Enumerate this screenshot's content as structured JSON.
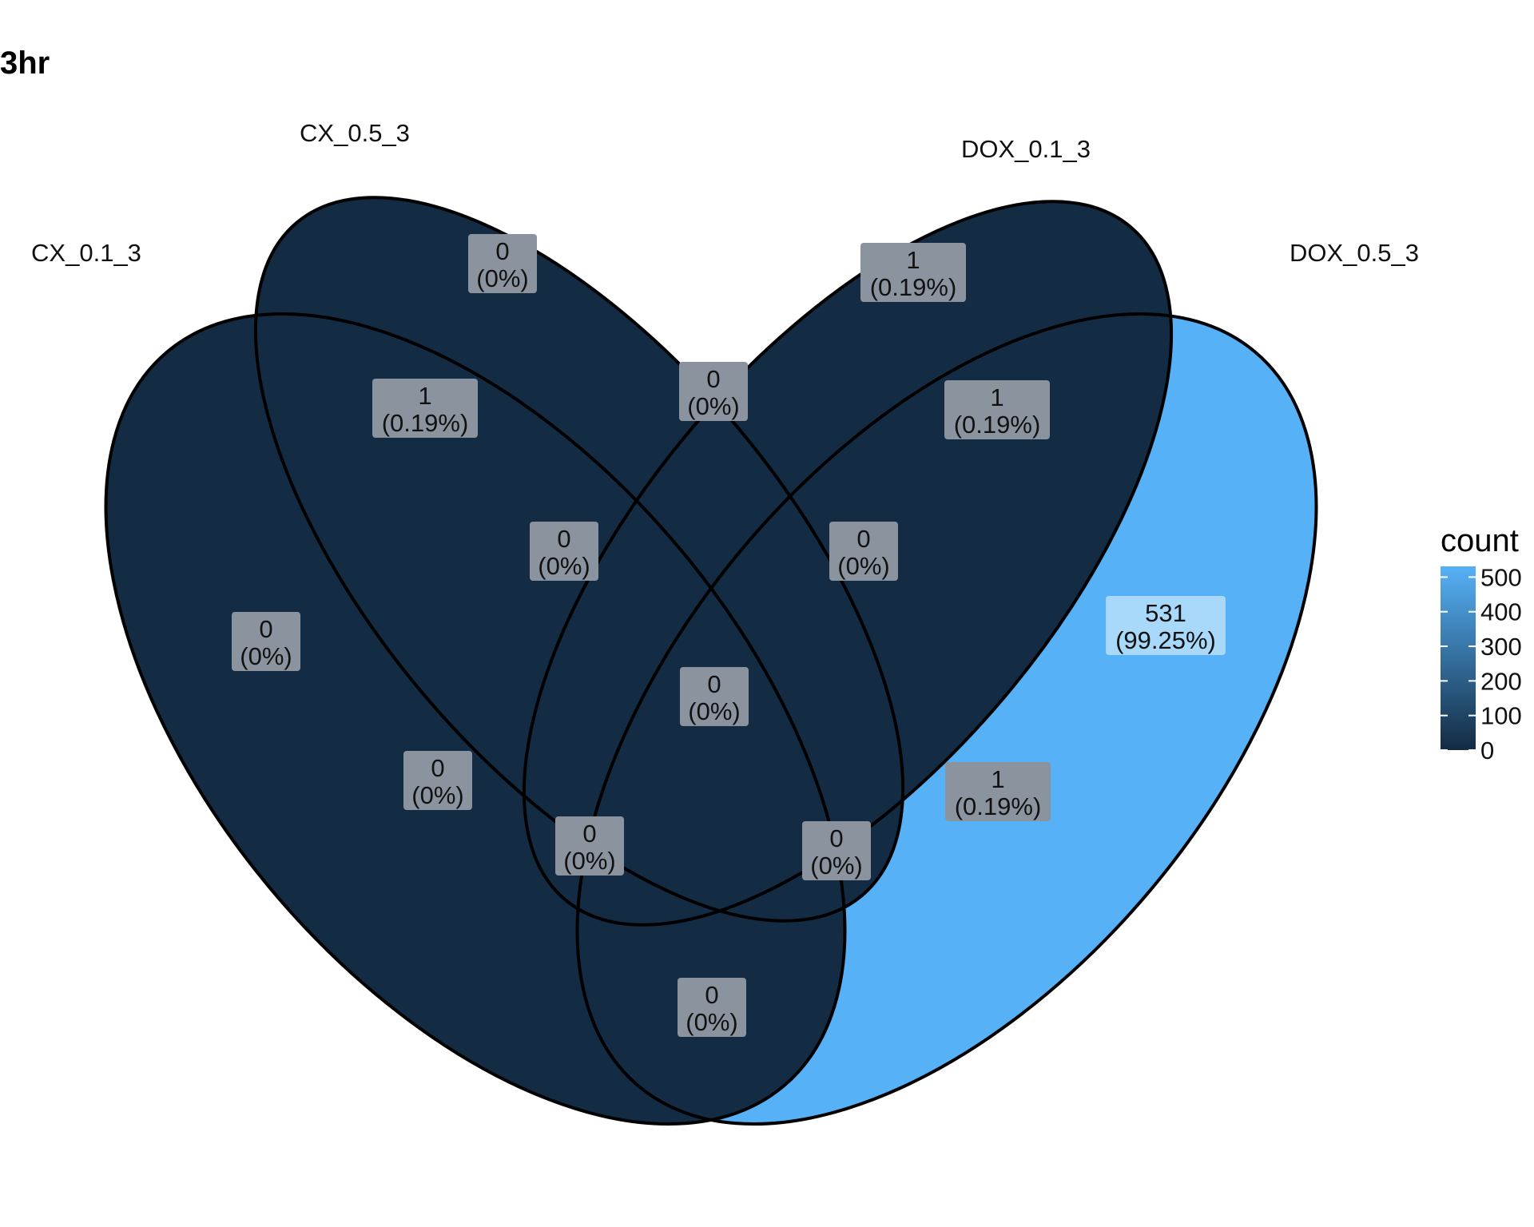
{
  "title": "3hr",
  "colors": {
    "low": "#132b43",
    "high": "#56b1f7",
    "outline": "#000000",
    "label_bg": "#8b949e",
    "label_bg_highlight": "#a8d8fa"
  },
  "sets": [
    {
      "id": "A",
      "label": "CX_0.1_3"
    },
    {
      "id": "B",
      "label": "CX_0.5_3"
    },
    {
      "id": "C",
      "label": "DOX_0.1_3"
    },
    {
      "id": "D",
      "label": "DOX_0.5_3"
    }
  ],
  "regions": [
    {
      "sets": "A",
      "count": "0",
      "percent": "(0%)"
    },
    {
      "sets": "B",
      "count": "0",
      "percent": "(0%)"
    },
    {
      "sets": "C",
      "count": "1",
      "percent": "(0.19%)"
    },
    {
      "sets": "D",
      "count": "531",
      "percent": "(99.25%)"
    },
    {
      "sets": "AB",
      "count": "1",
      "percent": "(0.19%)"
    },
    {
      "sets": "BC",
      "count": "0",
      "percent": "(0%)"
    },
    {
      "sets": "CD",
      "count": "1",
      "percent": "(0.19%)"
    },
    {
      "sets": "ABC",
      "count": "0",
      "percent": "(0%)"
    },
    {
      "sets": "BCD",
      "count": "0",
      "percent": "(0%)"
    },
    {
      "sets": "ABCD",
      "count": "0",
      "percent": "(0%)"
    },
    {
      "sets": "AC",
      "count": "0",
      "percent": "(0%)"
    },
    {
      "sets": "BD",
      "count": "1",
      "percent": "(0.19%)"
    },
    {
      "sets": "ACD",
      "count": "0",
      "percent": "(0%)"
    },
    {
      "sets": "ABD",
      "count": "0",
      "percent": "(0%)"
    },
    {
      "sets": "AD",
      "count": "0",
      "percent": "(0%)"
    }
  ],
  "legend": {
    "title": "count",
    "ticks": [
      "500",
      "400",
      "300",
      "200",
      "100",
      "0"
    ]
  }
}
